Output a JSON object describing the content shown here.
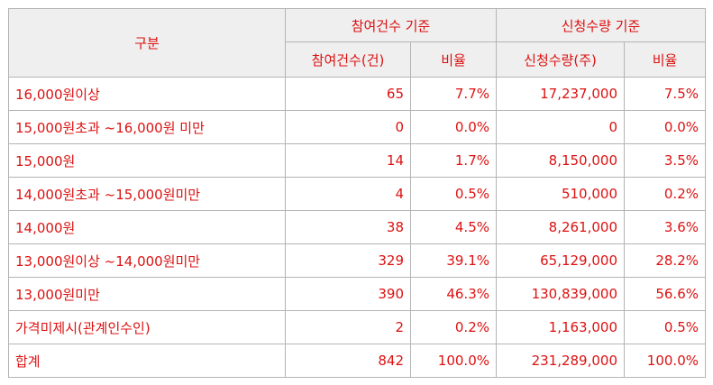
{
  "header": {
    "category": "구분",
    "group_participants": "참여건수 기준",
    "group_quantity": "신청수량 기준",
    "sub_participants": "참여건수(건)",
    "sub_ratio_1": "비율",
    "sub_quantity": "신청수량(주)",
    "sub_ratio_2": "비율"
  },
  "rows": [
    {
      "label": "16,000원이상",
      "count": "65",
      "count_ratio": "7.7%",
      "qty": "17,237,000",
      "qty_ratio": "7.5%"
    },
    {
      "label": "15,000원초과 ~16,000원 미만",
      "count": "0",
      "count_ratio": "0.0%",
      "qty": "0",
      "qty_ratio": "0.0%"
    },
    {
      "label": "15,000원",
      "count": "14",
      "count_ratio": "1.7%",
      "qty": "8,150,000",
      "qty_ratio": "3.5%"
    },
    {
      "label": "14,000원초과 ~15,000원미만",
      "count": "4",
      "count_ratio": "0.5%",
      "qty": "510,000",
      "qty_ratio": "0.2%"
    },
    {
      "label": "14,000원",
      "count": "38",
      "count_ratio": "4.5%",
      "qty": "8,261,000",
      "qty_ratio": "3.6%"
    },
    {
      "label": "13,000원이상 ~14,000원미만",
      "count": "329",
      "count_ratio": "39.1%",
      "qty": "65,129,000",
      "qty_ratio": "28.2%"
    },
    {
      "label": "13,000원미만",
      "count": "390",
      "count_ratio": "46.3%",
      "qty": "130,839,000",
      "qty_ratio": "56.6%"
    },
    {
      "label": "가격미제시(관계인수인)",
      "count": "2",
      "count_ratio": "0.2%",
      "qty": "1,163,000",
      "qty_ratio": "0.5%"
    },
    {
      "label": "합계",
      "count": "842",
      "count_ratio": "100.0%",
      "qty": "231,289,000",
      "qty_ratio": "100.0%"
    }
  ],
  "colors": {
    "text": "#dd1111",
    "header_bg": "#efefef",
    "border": "#b4b4b4"
  }
}
